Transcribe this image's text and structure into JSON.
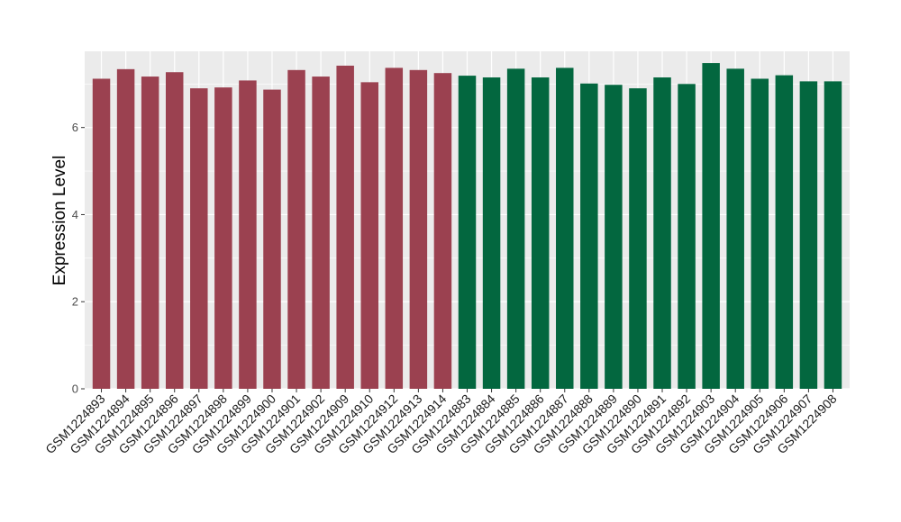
{
  "chart_data": {
    "type": "bar",
    "title": "",
    "xlabel": "",
    "ylabel": "Expression Level",
    "ylim": [
      0,
      7.75
    ],
    "yticks": [
      0,
      2,
      4,
      6
    ],
    "grid": true,
    "legend": "none",
    "categories": [
      "GSM1224893",
      "GSM1224894",
      "GSM1224895",
      "GSM1224896",
      "GSM1224897",
      "GSM1224898",
      "GSM1224899",
      "GSM1224900",
      "GSM1224901",
      "GSM1224902",
      "GSM1224909",
      "GSM1224910",
      "GSM1224912",
      "GSM1224913",
      "GSM1224914",
      "GSM1224883",
      "GSM1224884",
      "GSM1224885",
      "GSM1224886",
      "GSM1224887",
      "GSM1224888",
      "GSM1224889",
      "GSM1224890",
      "GSM1224891",
      "GSM1224892",
      "GSM1224903",
      "GSM1224904",
      "GSM1224905",
      "GSM1224906",
      "GSM1224907",
      "GSM1224908"
    ],
    "values": [
      7.12,
      7.34,
      7.17,
      7.27,
      6.9,
      6.92,
      7.08,
      6.87,
      7.32,
      7.17,
      7.42,
      7.04,
      7.37,
      7.32,
      7.25,
      7.19,
      7.15,
      7.35,
      7.15,
      7.37,
      7.01,
      6.98,
      6.9,
      7.15,
      7.0,
      7.48,
      7.35,
      7.12,
      7.2,
      7.06,
      7.06
    ],
    "group_index": [
      0,
      0,
      0,
      0,
      0,
      0,
      0,
      0,
      0,
      0,
      0,
      0,
      0,
      0,
      0,
      1,
      1,
      1,
      1,
      1,
      1,
      1,
      1,
      1,
      1,
      1,
      1,
      1,
      1,
      1,
      1
    ],
    "group_colors": [
      "#9b4150",
      "#03673f"
    ],
    "panel_background": "#ebebeb",
    "grid_color": "#ffffff"
  }
}
